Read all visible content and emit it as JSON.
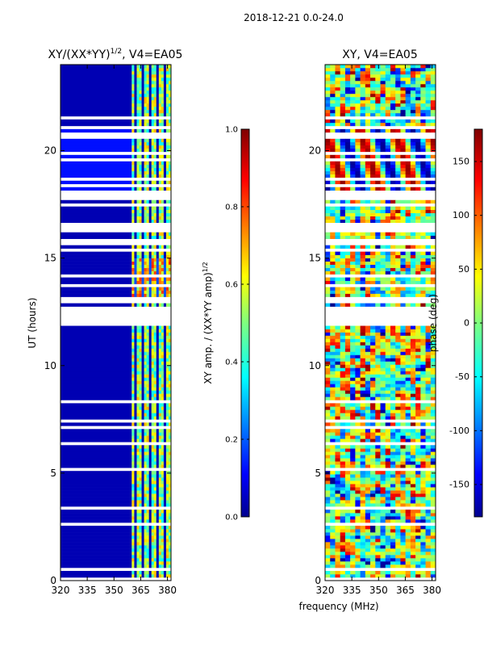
{
  "suptitle": "2018-12-21 0.0-24.0",
  "shared_xlabel": "frequency (MHz)",
  "colors": {
    "plot_bg": "#ffffff",
    "low": "#00008f",
    "high": "#800000"
  },
  "chart_data": [
    {
      "type": "heatmap",
      "title_main": "XY/(XX*YY)",
      "title_exp": "1/2",
      "title_tail": ", V4=EA05",
      "xlabel": "",
      "ylabel": "UT (hours)",
      "xlim": [
        320,
        382
      ],
      "ylim": [
        0,
        24
      ],
      "xticks": [
        320,
        335,
        350,
        365,
        380
      ],
      "yticks": [
        0,
        5,
        10,
        15,
        20
      ],
      "colorbar": {
        "label_main": "XY amp. / (XX*YY amp)",
        "label_exp": "1/2",
        "range": [
          0.0,
          1.0
        ],
        "ticks": [
          "0.0",
          "0.2",
          "0.4",
          "0.6",
          "0.8",
          "1.0"
        ],
        "tick_values": [
          0.0,
          0.2,
          0.4,
          0.6,
          0.8,
          1.0
        ]
      },
      "high_channel_band_mhz": [
        360,
        382
      ],
      "baseline_value": 0.05
    },
    {
      "type": "heatmap",
      "title_main": "XY, V4=EA05",
      "xlabel": "",
      "ylabel": "",
      "xlim": [
        320,
        382
      ],
      "ylim": [
        0,
        24
      ],
      "xticks": [
        320,
        335,
        350,
        365,
        380
      ],
      "yticks": [
        0,
        5,
        10,
        15,
        20
      ],
      "colorbar": {
        "label_main": "phase (deg)",
        "range": [
          -180,
          180
        ],
        "ticks": [
          "-150",
          "-100",
          "-50",
          "0",
          "50",
          "100",
          "150"
        ],
        "tick_values": [
          -150,
          -100,
          -50,
          0,
          50,
          100,
          150
        ]
      }
    }
  ]
}
